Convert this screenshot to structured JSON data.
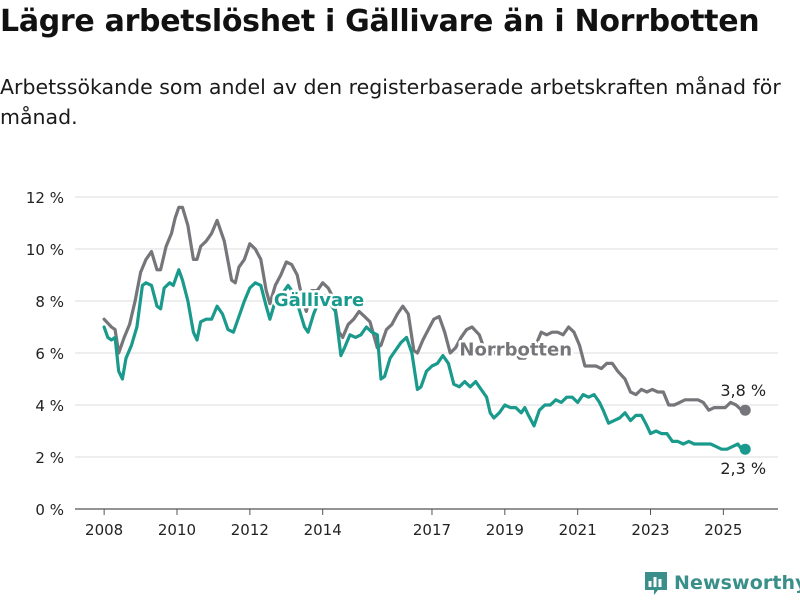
{
  "header": {
    "title": "Lägre arbetslöshet i Gällivare än i Norrbotten",
    "subtitle": "Arbetssökande som andel av den registerbaserade arbetskraften månad för månad."
  },
  "footer": {
    "brand": "Newsworthy",
    "logo_icon": "bar-chart-icon"
  },
  "colors": {
    "gallivare": "#1a9a8c",
    "norrbotten": "#76767a",
    "grid": "#dcdcdc",
    "brand": "#3a8f8a"
  },
  "chart_data": {
    "type": "line",
    "x_unit": "year",
    "y_unit": "%",
    "xlim": [
      2007.2,
      2026.5
    ],
    "ylim": [
      0,
      12
    ],
    "y_ticks": [
      0,
      2,
      4,
      6,
      8,
      10,
      12
    ],
    "y_tick_labels": [
      "0 %",
      "2 %",
      "4 %",
      "6 %",
      "8 %",
      "10 %",
      "12 %"
    ],
    "x_ticks": [
      2008,
      2010,
      2012,
      2014,
      2017,
      2019,
      2021,
      2023,
      2025
    ],
    "x_tick_labels": [
      "2008",
      "2010",
      "2012",
      "2014",
      "2017",
      "2019",
      "2021",
      "2023",
      "2025"
    ],
    "grid": "horizontal",
    "series": [
      {
        "name": "Norrbotten",
        "color": "#76767a",
        "end_label": "3,8 %",
        "points": [
          [
            2008.0,
            7.3
          ],
          [
            2008.2,
            7.0
          ],
          [
            2008.3,
            6.9
          ],
          [
            2008.4,
            6.0
          ],
          [
            2008.55,
            6.6
          ],
          [
            2008.7,
            7.1
          ],
          [
            2008.85,
            8.0
          ],
          [
            2009.0,
            9.1
          ],
          [
            2009.15,
            9.6
          ],
          [
            2009.3,
            9.9
          ],
          [
            2009.45,
            9.2
          ],
          [
            2009.55,
            9.2
          ],
          [
            2009.7,
            10.1
          ],
          [
            2009.85,
            10.6
          ],
          [
            2009.95,
            11.2
          ],
          [
            2010.05,
            11.6
          ],
          [
            2010.15,
            11.6
          ],
          [
            2010.3,
            10.9
          ],
          [
            2010.45,
            9.6
          ],
          [
            2010.55,
            9.6
          ],
          [
            2010.65,
            10.1
          ],
          [
            2010.8,
            10.3
          ],
          [
            2010.95,
            10.6
          ],
          [
            2011.1,
            11.1
          ],
          [
            2011.3,
            10.3
          ],
          [
            2011.5,
            8.8
          ],
          [
            2011.6,
            8.7
          ],
          [
            2011.7,
            9.3
          ],
          [
            2011.85,
            9.6
          ],
          [
            2012.0,
            10.2
          ],
          [
            2012.15,
            10.0
          ],
          [
            2012.3,
            9.6
          ],
          [
            2012.45,
            8.4
          ],
          [
            2012.55,
            7.9
          ],
          [
            2012.7,
            8.6
          ],
          [
            2012.85,
            9.0
          ],
          [
            2013.0,
            9.5
          ],
          [
            2013.15,
            9.4
          ],
          [
            2013.3,
            9.0
          ],
          [
            2013.45,
            8.0
          ],
          [
            2013.55,
            7.6
          ],
          [
            2013.7,
            8.4
          ],
          [
            2013.85,
            8.4
          ],
          [
            2014.0,
            8.7
          ],
          [
            2014.15,
            8.5
          ],
          [
            2014.3,
            8.1
          ],
          [
            2014.45,
            6.8
          ],
          [
            2014.55,
            6.6
          ],
          [
            2014.7,
            7.1
          ],
          [
            2014.85,
            7.3
          ],
          [
            2015.0,
            7.6
          ],
          [
            2015.15,
            7.4
          ],
          [
            2015.3,
            7.2
          ],
          [
            2015.5,
            6.2
          ],
          [
            2015.6,
            6.3
          ],
          [
            2015.75,
            6.9
          ],
          [
            2015.9,
            7.1
          ],
          [
            2016.05,
            7.5
          ],
          [
            2016.2,
            7.8
          ],
          [
            2016.35,
            7.5
          ],
          [
            2016.5,
            6.1
          ],
          [
            2016.6,
            6.0
          ],
          [
            2016.75,
            6.5
          ],
          [
            2016.9,
            6.9
          ],
          [
            2017.05,
            7.3
          ],
          [
            2017.2,
            7.4
          ],
          [
            2017.35,
            6.8
          ],
          [
            2017.5,
            6.0
          ],
          [
            2017.65,
            6.2
          ],
          [
            2017.8,
            6.6
          ],
          [
            2017.95,
            6.9
          ],
          [
            2018.1,
            7.0
          ],
          [
            2018.3,
            6.7
          ],
          [
            2018.5,
            5.9
          ],
          [
            2018.7,
            6.0
          ],
          [
            2018.9,
            6.1
          ],
          [
            2019.05,
            6.3
          ],
          [
            2019.2,
            6.2
          ],
          [
            2019.4,
            5.8
          ],
          [
            2019.55,
            5.8
          ],
          [
            2019.7,
            6.1
          ],
          [
            2019.85,
            6.3
          ],
          [
            2020.0,
            6.8
          ],
          [
            2020.15,
            6.7
          ],
          [
            2020.3,
            6.8
          ],
          [
            2020.45,
            6.8
          ],
          [
            2020.6,
            6.7
          ],
          [
            2020.75,
            7.0
          ],
          [
            2020.9,
            6.8
          ],
          [
            2021.05,
            6.3
          ],
          [
            2021.2,
            5.5
          ],
          [
            2021.35,
            5.5
          ],
          [
            2021.5,
            5.5
          ],
          [
            2021.65,
            5.4
          ],
          [
            2021.8,
            5.6
          ],
          [
            2021.95,
            5.6
          ],
          [
            2022.1,
            5.3
          ],
          [
            2022.3,
            5.0
          ],
          [
            2022.45,
            4.5
          ],
          [
            2022.6,
            4.4
          ],
          [
            2022.75,
            4.6
          ],
          [
            2022.9,
            4.5
          ],
          [
            2023.05,
            4.6
          ],
          [
            2023.2,
            4.5
          ],
          [
            2023.35,
            4.5
          ],
          [
            2023.5,
            4.0
          ],
          [
            2023.65,
            4.0
          ],
          [
            2023.8,
            4.1
          ],
          [
            2023.95,
            4.2
          ],
          [
            2024.1,
            4.2
          ],
          [
            2024.3,
            4.2
          ],
          [
            2024.45,
            4.1
          ],
          [
            2024.6,
            3.8
          ],
          [
            2024.75,
            3.9
          ],
          [
            2024.9,
            3.9
          ],
          [
            2025.05,
            3.9
          ],
          [
            2025.2,
            4.1
          ],
          [
            2025.35,
            4.0
          ],
          [
            2025.5,
            3.8
          ],
          [
            2025.6,
            3.8
          ]
        ]
      },
      {
        "name": "Gällivare",
        "color": "#1a9a8c",
        "end_label": "2,3 %",
        "points": [
          [
            2008.0,
            7.0
          ],
          [
            2008.1,
            6.6
          ],
          [
            2008.2,
            6.5
          ],
          [
            2008.3,
            6.6
          ],
          [
            2008.4,
            5.3
          ],
          [
            2008.5,
            5.0
          ],
          [
            2008.6,
            5.8
          ],
          [
            2008.75,
            6.3
          ],
          [
            2008.9,
            7.0
          ],
          [
            2009.05,
            8.6
          ],
          [
            2009.15,
            8.7
          ],
          [
            2009.3,
            8.6
          ],
          [
            2009.45,
            7.8
          ],
          [
            2009.55,
            7.7
          ],
          [
            2009.65,
            8.5
          ],
          [
            2009.8,
            8.7
          ],
          [
            2009.9,
            8.6
          ],
          [
            2010.05,
            9.2
          ],
          [
            2010.15,
            8.8
          ],
          [
            2010.3,
            8.0
          ],
          [
            2010.45,
            6.8
          ],
          [
            2010.55,
            6.5
          ],
          [
            2010.65,
            7.2
          ],
          [
            2010.8,
            7.3
          ],
          [
            2010.95,
            7.3
          ],
          [
            2011.1,
            7.8
          ],
          [
            2011.25,
            7.5
          ],
          [
            2011.4,
            6.9
          ],
          [
            2011.55,
            6.8
          ],
          [
            2011.7,
            7.4
          ],
          [
            2011.85,
            8.0
          ],
          [
            2012.0,
            8.5
          ],
          [
            2012.15,
            8.7
          ],
          [
            2012.3,
            8.6
          ],
          [
            2012.45,
            7.8
          ],
          [
            2012.55,
            7.3
          ],
          [
            2012.7,
            8.0
          ],
          [
            2012.9,
            8.3
          ],
          [
            2013.05,
            8.6
          ],
          [
            2013.2,
            8.3
          ],
          [
            2013.35,
            7.7
          ],
          [
            2013.5,
            7.0
          ],
          [
            2013.6,
            6.8
          ],
          [
            2013.75,
            7.5
          ],
          [
            2013.9,
            8.0
          ],
          [
            2014.05,
            8.2
          ],
          [
            2014.2,
            7.9
          ],
          [
            2014.35,
            7.6
          ],
          [
            2014.5,
            5.9
          ],
          [
            2014.6,
            6.2
          ],
          [
            2014.75,
            6.7
          ],
          [
            2014.9,
            6.6
          ],
          [
            2015.05,
            6.7
          ],
          [
            2015.2,
            7.0
          ],
          [
            2015.35,
            6.8
          ],
          [
            2015.5,
            6.7
          ],
          [
            2015.6,
            5.0
          ],
          [
            2015.7,
            5.1
          ],
          [
            2015.85,
            5.8
          ],
          [
            2016.0,
            6.1
          ],
          [
            2016.15,
            6.4
          ],
          [
            2016.3,
            6.6
          ],
          [
            2016.45,
            6.0
          ],
          [
            2016.6,
            4.6
          ],
          [
            2016.7,
            4.7
          ],
          [
            2016.85,
            5.3
          ],
          [
            2017.0,
            5.5
          ],
          [
            2017.15,
            5.6
          ],
          [
            2017.3,
            5.9
          ],
          [
            2017.45,
            5.6
          ],
          [
            2017.6,
            4.8
          ],
          [
            2017.75,
            4.7
          ],
          [
            2017.9,
            4.9
          ],
          [
            2018.05,
            4.7
          ],
          [
            2018.2,
            4.9
          ],
          [
            2018.35,
            4.6
          ],
          [
            2018.5,
            4.3
          ],
          [
            2018.6,
            3.7
          ],
          [
            2018.7,
            3.5
          ],
          [
            2018.85,
            3.7
          ],
          [
            2019.0,
            4.0
          ],
          [
            2019.15,
            3.9
          ],
          [
            2019.3,
            3.9
          ],
          [
            2019.45,
            3.7
          ],
          [
            2019.55,
            3.9
          ],
          [
            2019.65,
            3.6
          ],
          [
            2019.8,
            3.2
          ],
          [
            2019.95,
            3.8
          ],
          [
            2020.1,
            4.0
          ],
          [
            2020.25,
            4.0
          ],
          [
            2020.4,
            4.2
          ],
          [
            2020.55,
            4.1
          ],
          [
            2020.7,
            4.3
          ],
          [
            2020.85,
            4.3
          ],
          [
            2021.0,
            4.1
          ],
          [
            2021.15,
            4.4
          ],
          [
            2021.3,
            4.3
          ],
          [
            2021.45,
            4.4
          ],
          [
            2021.6,
            4.1
          ],
          [
            2021.7,
            3.8
          ],
          [
            2021.85,
            3.3
          ],
          [
            2022.0,
            3.4
          ],
          [
            2022.15,
            3.5
          ],
          [
            2022.3,
            3.7
          ],
          [
            2022.45,
            3.4
          ],
          [
            2022.6,
            3.6
          ],
          [
            2022.75,
            3.6
          ],
          [
            2022.9,
            3.2
          ],
          [
            2023.0,
            2.9
          ],
          [
            2023.15,
            3.0
          ],
          [
            2023.3,
            2.9
          ],
          [
            2023.45,
            2.9
          ],
          [
            2023.6,
            2.6
          ],
          [
            2023.75,
            2.6
          ],
          [
            2023.9,
            2.5
          ],
          [
            2024.05,
            2.6
          ],
          [
            2024.2,
            2.5
          ],
          [
            2024.35,
            2.5
          ],
          [
            2024.5,
            2.5
          ],
          [
            2024.65,
            2.5
          ],
          [
            2024.8,
            2.4
          ],
          [
            2024.95,
            2.3
          ],
          [
            2025.1,
            2.3
          ],
          [
            2025.25,
            2.4
          ],
          [
            2025.4,
            2.5
          ],
          [
            2025.5,
            2.3
          ],
          [
            2025.6,
            2.3
          ]
        ]
      }
    ],
    "annotations": [
      {
        "text": "Gällivare",
        "series": "Gällivare",
        "x": 2013.9,
        "y": 7.8
      },
      {
        "text": "Norrbotten",
        "series": "Norrbotten",
        "x": 2019.3,
        "y": 5.9
      }
    ]
  }
}
